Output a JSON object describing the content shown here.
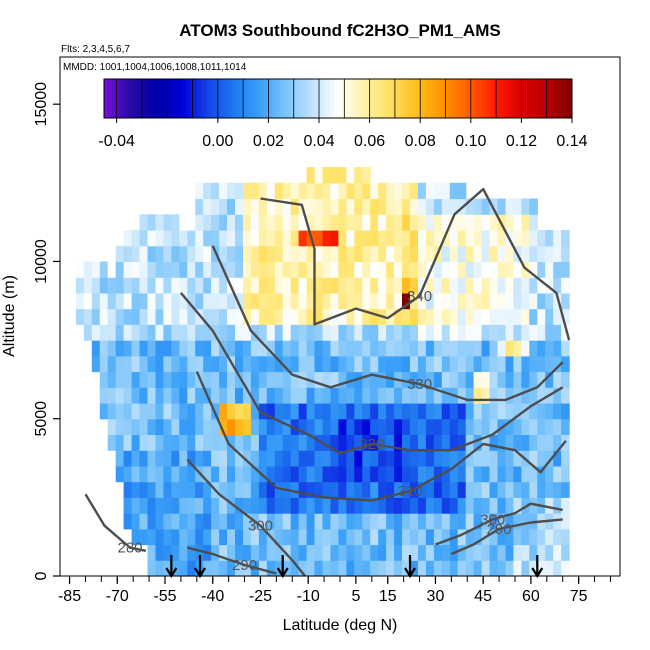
{
  "chart_data": {
    "type": "heatmap",
    "title": "ATOM3 Southbound fC2H3O_PM1_AMS",
    "flights_text": "Flts: 2,3,4,5,6,7",
    "dates_text": "MMDD: 1001,1004,1006,1008,1011,1014",
    "xlabel": "Latitude (deg N)",
    "ylabel": "Altitude (m)",
    "xlim": [
      -88,
      88
    ],
    "ylim": [
      0,
      16500
    ],
    "x_ticks": [
      -85,
      -70,
      -55,
      -40,
      -25,
      -10,
      5,
      15,
      30,
      45,
      60,
      75
    ],
    "y_ticks": [
      0,
      5000,
      10000,
      15000
    ],
    "colorbar": {
      "range": [
        -0.045,
        0.14
      ],
      "tick_values": [
        -0.04,
        0.0,
        0.02,
        0.04,
        0.06,
        0.08,
        0.1,
        0.12,
        0.14
      ],
      "tick_labels": [
        "-0.04",
        "0.00",
        "0.02",
        "0.04",
        "0.06",
        "0.08",
        "0.10",
        "0.12",
        "0.14"
      ],
      "colors": [
        "#7a0fd8",
        "#2a0aa8",
        "#0000a8",
        "#0000d8",
        "#1444e8",
        "#1e78f0",
        "#3aa0f8",
        "#7cc4fa",
        "#bfe2fb",
        "#ffffff",
        "#fff2a8",
        "#ffe060",
        "#ffc020",
        "#ff9500",
        "#ff6000",
        "#ff2000",
        "#dc0000",
        "#b80000",
        "#800000"
      ]
    },
    "contours": [
      {
        "label": "280",
        "points": [
          [
            -80,
            2600
          ],
          [
            -74,
            1600
          ],
          [
            -66,
            900
          ],
          [
            -61,
            800
          ]
        ]
      },
      {
        "label": "290",
        "points": [
          [
            -48,
            900
          ],
          [
            -40,
            700
          ],
          [
            -30,
            350
          ],
          [
            -20,
            80
          ]
        ]
      },
      {
        "label": "290",
        "points": [
          [
            70,
            1800
          ],
          [
            60,
            1700
          ],
          [
            50,
            1500
          ],
          [
            42,
            1000
          ],
          [
            35,
            700
          ]
        ]
      },
      {
        "label": "300",
        "points": [
          [
            -48,
            3700
          ],
          [
            -38,
            2600
          ],
          [
            -25,
            1600
          ],
          [
            -15,
            500
          ],
          [
            -11,
            0
          ]
        ]
      },
      {
        "label": "300",
        "points": [
          [
            70,
            2100
          ],
          [
            60,
            2300
          ],
          [
            55,
            2000
          ],
          [
            48,
            1800
          ],
          [
            38,
            1300
          ],
          [
            30,
            1000
          ]
        ]
      },
      {
        "label": "310",
        "points": [
          [
            -45,
            6500
          ],
          [
            -35,
            4200
          ],
          [
            -20,
            2800
          ],
          [
            -5,
            2500
          ],
          [
            10,
            2400
          ],
          [
            22,
            2700
          ],
          [
            35,
            3400
          ],
          [
            45,
            4200
          ],
          [
            55,
            4000
          ],
          [
            63,
            3300
          ],
          [
            71,
            4300
          ]
        ]
      },
      {
        "label": "320",
        "points": [
          [
            -50,
            9000
          ],
          [
            -40,
            7800
          ],
          [
            -25,
            5200
          ],
          [
            -10,
            4500
          ],
          [
            0,
            3900
          ],
          [
            10,
            4200
          ],
          [
            22,
            4000
          ],
          [
            35,
            4000
          ],
          [
            48,
            4500
          ],
          [
            60,
            5400
          ],
          [
            70,
            6000
          ]
        ]
      },
      {
        "label": "330",
        "points": [
          [
            -40,
            10500
          ],
          [
            -28,
            7800
          ],
          [
            -15,
            6400
          ],
          [
            -3,
            6000
          ],
          [
            10,
            6400
          ],
          [
            25,
            6100
          ],
          [
            40,
            5600
          ],
          [
            52,
            5600
          ],
          [
            62,
            6000
          ],
          [
            70,
            6800
          ]
        ]
      },
      {
        "label": "340",
        "points": [
          [
            -25,
            12000
          ],
          [
            -12,
            11800
          ],
          [
            -8,
            10400
          ],
          [
            -8,
            8000
          ],
          [
            5,
            8500
          ],
          [
            15,
            8200
          ],
          [
            25,
            8900
          ],
          [
            36,
            11500
          ],
          [
            45,
            12300
          ],
          [
            58,
            9800
          ],
          [
            68,
            9000
          ],
          [
            72,
            7500
          ]
        ]
      }
    ],
    "arrows_x": [
      -53,
      -44,
      -18,
      22,
      62
    ]
  }
}
